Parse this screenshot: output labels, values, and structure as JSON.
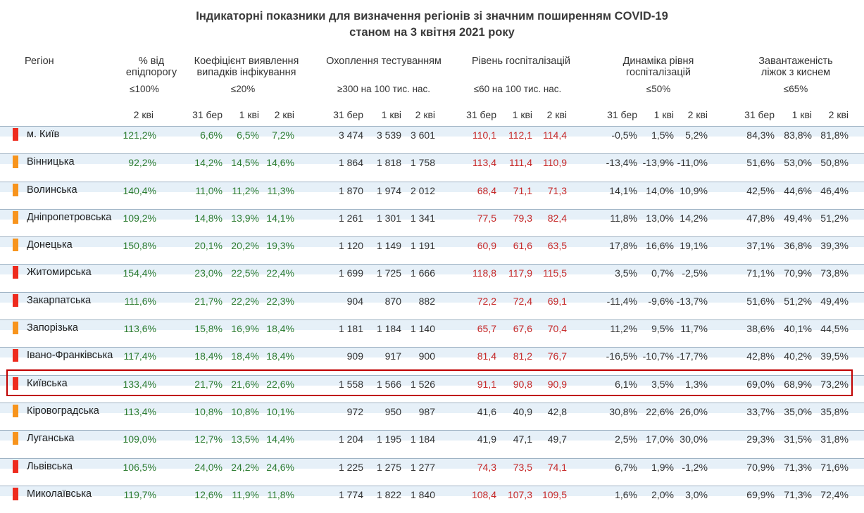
{
  "title": {
    "line1": "Індикаторні показники для визначення регіонів зі значним поширенням COVID-19",
    "line2": "станом на 3 квітня 2021 року"
  },
  "headers": {
    "region": "Регіон",
    "epi": "% від\nепідпорогу",
    "coef": "Коефіцієнт виявлення\nвипадків інфікування",
    "testing": "Охоплення тестуванням",
    "hosp": "Рівень госпіталізацій",
    "dyn": "Динаміка рівня\nгоспіталізацій",
    "beds": "Завантаженість\nліжок з киснем"
  },
  "thresholds": {
    "epi": "≤100%",
    "coef": "≤20%",
    "testing": "≥300 на 100 тис. нас.",
    "hosp": "≤60 на 100 тис. нас.",
    "dyn": "≤50%",
    "beds": "≤65%"
  },
  "subheaders": {
    "epi": "2 кві",
    "d31": "31 бер",
    "w1": "1 кві",
    "w2": "2 кві"
  },
  "colors": {
    "red_flag": "#ee2b1e",
    "orange_flag": "#f7941d",
    "green_text": "#2e7d32",
    "red_text": "#c62828",
    "highlight": "#c00000"
  },
  "rows": [
    {
      "flag": "red",
      "name": "м. Київ",
      "epi": "121,2%",
      "coef": [
        "6,6%",
        "6,5%",
        "7,2%"
      ],
      "test": [
        "3 474",
        "3 539",
        "3 601"
      ],
      "hosp": [
        "110,1",
        "112,1",
        "114,4"
      ],
      "dyn": [
        "-0,5%",
        "1,5%",
        "5,2%"
      ],
      "beds": [
        "84,3%",
        "83,8%",
        "81,8%"
      ]
    },
    {
      "flag": "orange",
      "name": "Вінницька",
      "epi": "92,2%",
      "coef": [
        "14,2%",
        "14,5%",
        "14,6%"
      ],
      "test": [
        "1 864",
        "1 818",
        "1 758"
      ],
      "hosp": [
        "113,4",
        "111,4",
        "110,9"
      ],
      "dyn": [
        "-13,4%",
        "-13,9%",
        "-11,0%"
      ],
      "beds": [
        "51,6%",
        "53,0%",
        "50,8%"
      ]
    },
    {
      "flag": "orange",
      "name": "Волинська",
      "epi": "140,4%",
      "coef": [
        "11,0%",
        "11,2%",
        "11,3%"
      ],
      "test": [
        "1 870",
        "1 974",
        "2 012"
      ],
      "hosp": [
        "68,4",
        "71,1",
        "71,3"
      ],
      "dyn": [
        "14,1%",
        "14,0%",
        "10,9%"
      ],
      "beds": [
        "42,5%",
        "44,6%",
        "46,4%"
      ]
    },
    {
      "flag": "orange",
      "name": "Дніпропетровська",
      "epi": "109,2%",
      "coef": [
        "14,8%",
        "13,9%",
        "14,1%"
      ],
      "test": [
        "1 261",
        "1 301",
        "1 341"
      ],
      "hosp": [
        "77,5",
        "79,3",
        "82,4"
      ],
      "dyn": [
        "11,8%",
        "13,0%",
        "14,2%"
      ],
      "beds": [
        "47,8%",
        "49,4%",
        "51,2%"
      ]
    },
    {
      "flag": "orange",
      "name": "Донецька",
      "epi": "150,8%",
      "coef": [
        "20,1%",
        "20,2%",
        "19,3%"
      ],
      "test": [
        "1 120",
        "1 149",
        "1 191"
      ],
      "hosp": [
        "60,9",
        "61,6",
        "63,5"
      ],
      "dyn": [
        "17,8%",
        "16,6%",
        "19,1%"
      ],
      "beds": [
        "37,1%",
        "36,8%",
        "39,3%"
      ]
    },
    {
      "flag": "red",
      "name": "Житомирська",
      "epi": "154,4%",
      "coef": [
        "23,0%",
        "22,5%",
        "22,4%"
      ],
      "test": [
        "1 699",
        "1 725",
        "1 666"
      ],
      "hosp": [
        "118,8",
        "117,9",
        "115,5"
      ],
      "dyn": [
        "3,5%",
        "0,7%",
        "-2,5%"
      ],
      "beds": [
        "71,1%",
        "70,9%",
        "73,8%"
      ]
    },
    {
      "flag": "red",
      "name": "Закарпатська",
      "epi": "111,6%",
      "coef": [
        "21,7%",
        "22,2%",
        "22,3%"
      ],
      "test": [
        "904",
        "870",
        "882"
      ],
      "hosp": [
        "72,2",
        "72,4",
        "69,1"
      ],
      "dyn": [
        "-11,4%",
        "-9,6%",
        "-13,7%"
      ],
      "beds": [
        "51,6%",
        "51,2%",
        "49,4%"
      ]
    },
    {
      "flag": "orange",
      "name": "Запорізька",
      "epi": "113,6%",
      "coef": [
        "15,8%",
        "16,9%",
        "18,4%"
      ],
      "test": [
        "1 181",
        "1 184",
        "1 140"
      ],
      "hosp": [
        "65,7",
        "67,6",
        "70,4"
      ],
      "dyn": [
        "11,2%",
        "9,5%",
        "11,7%"
      ],
      "beds": [
        "38,6%",
        "40,1%",
        "44,5%"
      ]
    },
    {
      "flag": "red",
      "name": "Івано-Франківська",
      "epi": "117,4%",
      "coef": [
        "18,4%",
        "18,4%",
        "18,4%"
      ],
      "test": [
        "909",
        "917",
        "900"
      ],
      "hosp": [
        "81,4",
        "81,2",
        "76,7"
      ],
      "dyn": [
        "-16,5%",
        "-10,7%",
        "-17,7%"
      ],
      "beds": [
        "42,8%",
        "40,2%",
        "39,5%"
      ]
    },
    {
      "flag": "red",
      "name": "Київська",
      "epi": "133,4%",
      "coef": [
        "21,7%",
        "21,6%",
        "22,6%"
      ],
      "test": [
        "1 558",
        "1 566",
        "1 526"
      ],
      "hosp": [
        "91,1",
        "90,8",
        "90,9"
      ],
      "dyn": [
        "6,1%",
        "3,5%",
        "1,3%"
      ],
      "beds": [
        "69,0%",
        "68,9%",
        "73,2%"
      ]
    },
    {
      "flag": "orange",
      "name": "Кіровоградська",
      "epi": "113,4%",
      "coef": [
        "10,8%",
        "10,8%",
        "10,1%"
      ],
      "test": [
        "972",
        "950",
        "987"
      ],
      "hosp": [
        "41,6",
        "40,9",
        "42,8"
      ],
      "dyn": [
        "30,8%",
        "22,6%",
        "26,0%"
      ],
      "beds": [
        "33,7%",
        "35,0%",
        "35,8%"
      ]
    },
    {
      "flag": "orange",
      "name": "Луганська",
      "epi": "109,0%",
      "coef": [
        "12,7%",
        "13,5%",
        "14,4%"
      ],
      "test": [
        "1 204",
        "1 195",
        "1 184"
      ],
      "hosp": [
        "41,9",
        "47,1",
        "49,7"
      ],
      "dyn": [
        "2,5%",
        "17,0%",
        "30,0%"
      ],
      "beds": [
        "29,3%",
        "31,5%",
        "31,8%"
      ]
    },
    {
      "flag": "red",
      "name": "Львівська",
      "epi": "106,5%",
      "coef": [
        "24,0%",
        "24,2%",
        "24,6%"
      ],
      "test": [
        "1 225",
        "1 275",
        "1 277"
      ],
      "hosp": [
        "74,3",
        "73,5",
        "74,1"
      ],
      "dyn": [
        "6,7%",
        "1,9%",
        "-1,2%"
      ],
      "beds": [
        "70,9%",
        "71,3%",
        "71,6%"
      ]
    },
    {
      "flag": "red",
      "name": "Миколаївська",
      "epi": "119,7%",
      "coef": [
        "12,6%",
        "11,9%",
        "11,8%"
      ],
      "test": [
        "1 774",
        "1 822",
        "1 840"
      ],
      "hosp": [
        "108,4",
        "107,3",
        "109,5"
      ],
      "dyn": [
        "1,6%",
        "2,0%",
        "3,0%"
      ],
      "beds": [
        "69,9%",
        "71,3%",
        "72,4%"
      ]
    }
  ]
}
